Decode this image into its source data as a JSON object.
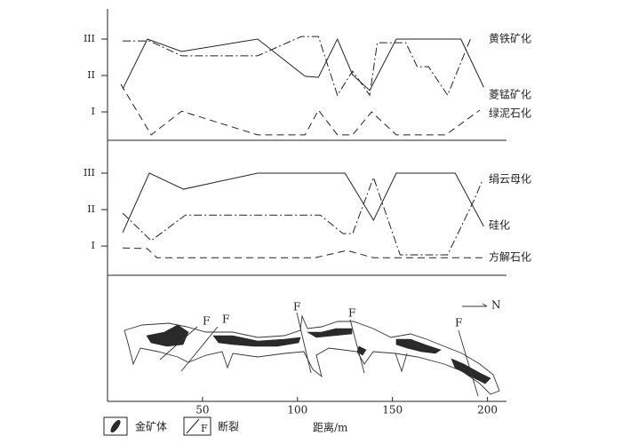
{
  "x_axis": {
    "label": "距离/m",
    "xlim": [
      0,
      210
    ],
    "xticks": [
      50,
      100,
      150,
      200
    ]
  },
  "chart_data": [
    {
      "type": "line",
      "ylim": [
        0.22,
        3.83
      ],
      "yticks": [
        {
          "value": 1,
          "label": "I"
        },
        {
          "value": 2,
          "label": "II"
        },
        {
          "value": 3,
          "label": "III"
        }
      ],
      "series": [
        {
          "name": "黄铁矿化",
          "color": "#222",
          "dash": "solid",
          "x": [
            8,
            21,
            39,
            79,
            104,
            111,
            121,
            129,
            138,
            152,
            186,
            198
          ],
          "values": [
            1.63,
            3,
            2.66,
            3,
            1.98,
            1.95,
            3,
            2.02,
            1.59,
            3,
            3,
            1.68
          ]
        },
        {
          "name": "菱锰矿化",
          "color": "#222",
          "dash": "dashdot",
          "x": [
            8,
            22,
            39,
            79,
            102,
            111,
            121,
            129,
            138,
            142,
            157,
            163,
            169,
            179,
            191
          ],
          "values": [
            2.95,
            2.95,
            2.54,
            2.54,
            3.07,
            3.07,
            1.46,
            2.12,
            1.46,
            2.9,
            2.9,
            2.24,
            2.24,
            1.46,
            3
          ]
        },
        {
          "name": "绿泥石化",
          "color": "#222",
          "dash": "dashed",
          "x": [
            7,
            23,
            39,
            79,
            104,
            111,
            121,
            129,
            139,
            152,
            178,
            196
          ],
          "values": [
            1.76,
            0.37,
            1.02,
            0.37,
            0.37,
            1.05,
            0.37,
            0.37,
            1,
            0.37,
            0.37,
            1.05
          ]
        }
      ]
    },
    {
      "type": "line",
      "ylim": [
        0.2,
        3.9
      ],
      "yticks": [
        {
          "value": 1,
          "label": "I"
        },
        {
          "value": 2,
          "label": "II"
        },
        {
          "value": 3,
          "label": "III"
        }
      ],
      "series": [
        {
          "name": "绢云母化",
          "color": "#222",
          "dash": "solid",
          "x": [
            8,
            22,
            40,
            79,
            125,
            140,
            152,
            183,
            198
          ],
          "values": [
            1.37,
            3,
            2.56,
            3,
            3,
            1.71,
            3,
            3,
            1.54
          ]
        },
        {
          "name": "硅化",
          "color": "#222",
          "dash": "dashdot",
          "x": [
            8,
            23,
            41,
            112,
            124,
            129,
            140,
            154,
            179,
            193,
            197
          ],
          "values": [
            1.9,
            1.15,
            1.85,
            1.85,
            1.34,
            1.34,
            2.88,
            0.76,
            0.76,
            2.27,
            2.76
          ]
        },
        {
          "name": "方解石化",
          "color": "#222",
          "dash": "dashed",
          "x": [
            8,
            21,
            26,
            109,
            126,
            140,
            198
          ],
          "values": [
            0.95,
            0.93,
            0.68,
            0.68,
            0.88,
            0.68,
            0.68
          ]
        }
      ]
    }
  ],
  "section": {
    "fault_labels": [
      "F",
      "F",
      "F",
      "F",
      "F"
    ],
    "north": "N"
  },
  "legend": {
    "ore": "金矿体",
    "fault_symbol": "F",
    "fault": "断裂"
  }
}
